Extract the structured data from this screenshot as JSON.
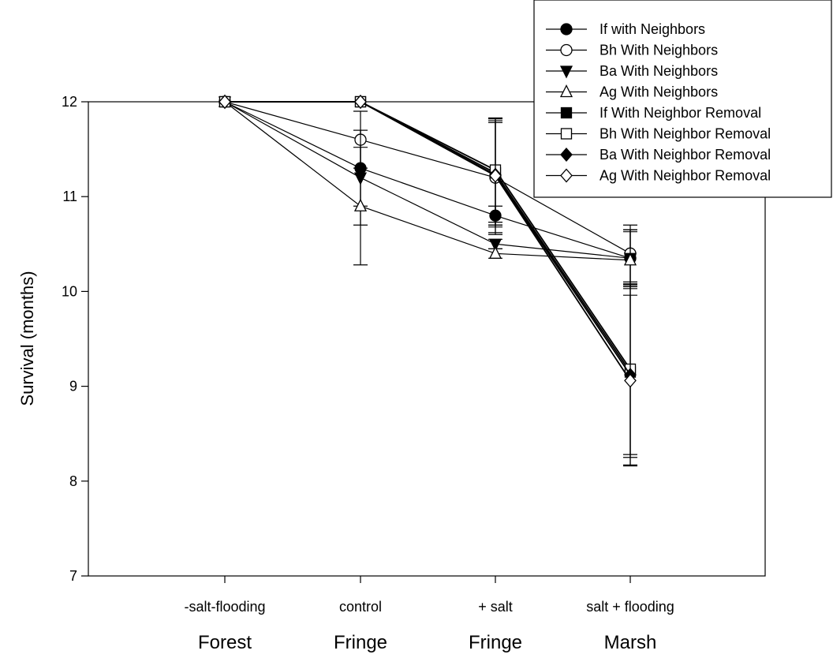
{
  "chart_data": {
    "type": "line",
    "title": "",
    "xlabel": "",
    "ylabel": "Survival (months)",
    "ylim": [
      7,
      12
    ],
    "yticks": [
      7,
      8,
      9,
      10,
      11,
      12
    ],
    "categories": [
      "-salt-flooding",
      "control",
      "+ salt",
      "salt + flooding"
    ],
    "group_labels": [
      "Forest",
      "Fringe",
      "Fringe",
      "Marsh"
    ],
    "legend_position": "top-right",
    "grid": false,
    "series": [
      {
        "name": "If with Neighbors",
        "marker": "circle",
        "fill": "#000000",
        "values": [
          12,
          11.3,
          10.8,
          10.35
        ],
        "err": [
          0,
          0.4,
          0.1,
          0.3
        ]
      },
      {
        "name": "Bh With Neighbors",
        "marker": "circle",
        "fill": "#ffffff",
        "values": [
          12,
          11.6,
          11.2,
          10.4
        ],
        "err": [
          0,
          0.3,
          0.6,
          0.3
        ]
      },
      {
        "name": "Ba With Neighbors",
        "marker": "triangle-down",
        "fill": "#000000",
        "values": [
          12,
          11.2,
          10.5,
          10.35
        ],
        "err": [
          0,
          0.5,
          0.05,
          0.3
        ]
      },
      {
        "name": "Ag With Neighbors",
        "marker": "triangle-up",
        "fill": "#ffffff",
        "values": [
          12,
          10.9,
          10.4,
          10.33
        ],
        "err": [
          0,
          0.62,
          0.05,
          0.3
        ]
      },
      {
        "name": "If With Neighbor Removal",
        "marker": "square",
        "fill": "#000000",
        "values": [
          12,
          12,
          11.25,
          9.15
        ],
        "err": [
          0,
          0,
          0.55,
          0.9
        ]
      },
      {
        "name": "Bh With Neighbor Removal",
        "marker": "square",
        "fill": "#ffffff",
        "values": [
          12,
          12,
          11.28,
          9.18
        ],
        "err": [
          0,
          0,
          0.55,
          0.9
        ]
      },
      {
        "name": "Ba With Neighbor Removal",
        "marker": "diamond",
        "fill": "#000000",
        "values": [
          12,
          12,
          11.23,
          9.12
        ],
        "err": [
          0,
          0,
          0.55,
          0.95
        ]
      },
      {
        "name": "Ag With Neighbor Removal",
        "marker": "diamond",
        "fill": "#ffffff",
        "values": [
          12,
          12,
          11.22,
          9.06
        ],
        "err": [
          0,
          0,
          0.6,
          0.9
        ]
      }
    ]
  }
}
